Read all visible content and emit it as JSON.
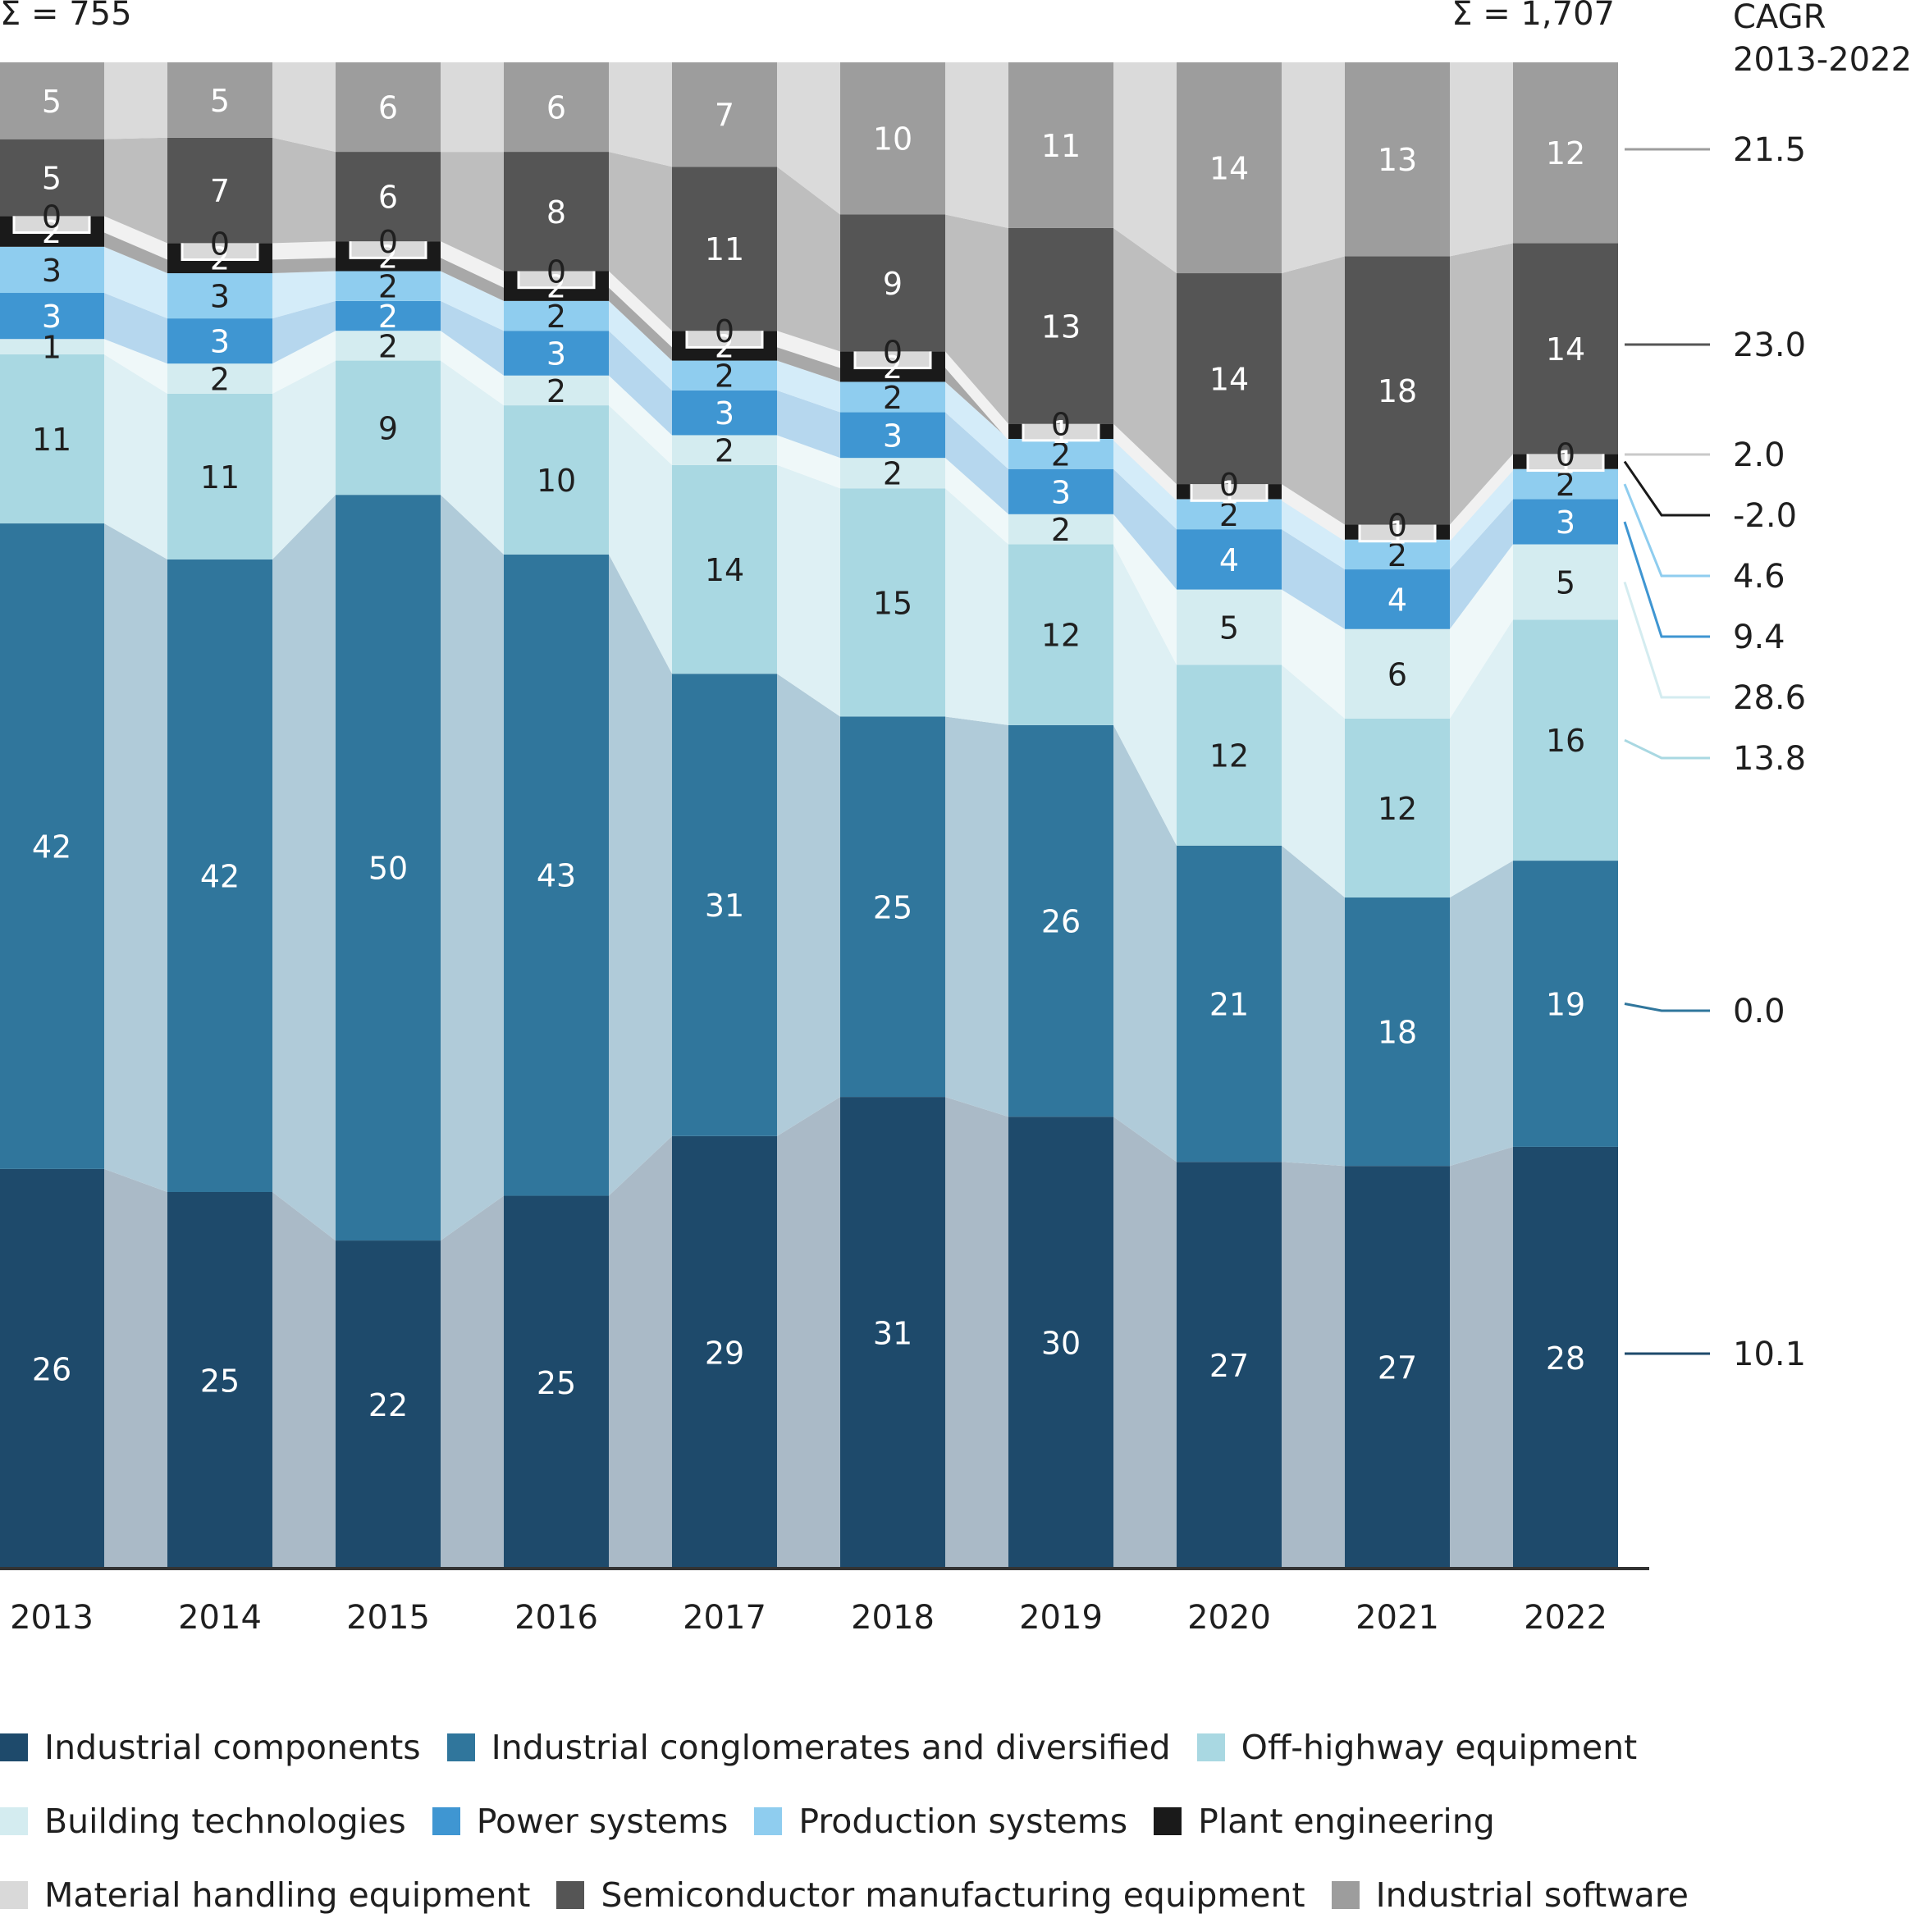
{
  "chart_data": {
    "type": "bar",
    "stacked": true,
    "normalized_percent": true,
    "categories": [
      "2013",
      "2014",
      "2015",
      "2016",
      "2017",
      "2018",
      "2019",
      "2020",
      "2021",
      "2022"
    ],
    "series": [
      {
        "name": "Industrial components",
        "color": "#1e4a6b",
        "values": [
          26,
          25,
          22,
          25,
          29,
          31,
          30,
          27,
          27,
          28
        ]
      },
      {
        "name": "Industrial conglomerates and diversified",
        "color": "#30769c",
        "values": [
          42,
          42,
          50,
          43,
          31,
          25,
          26,
          21,
          18,
          19
        ]
      },
      {
        "name": "Off-highway equipment",
        "color": "#a9d8e2",
        "values": [
          11,
          11,
          9,
          10,
          14,
          15,
          12,
          12,
          12,
          16
        ]
      },
      {
        "name": "Building technologies",
        "color": "#d4ecf0",
        "values": [
          1,
          2,
          2,
          2,
          2,
          2,
          2,
          5,
          6,
          5
        ]
      },
      {
        "name": "Power systems",
        "color": "#3f96d2",
        "values": [
          3,
          3,
          2,
          3,
          3,
          3,
          3,
          4,
          4,
          3
        ]
      },
      {
        "name": "Production systems",
        "color": "#8fcdef",
        "values": [
          3,
          3,
          2,
          2,
          2,
          2,
          2,
          2,
          2,
          2
        ]
      },
      {
        "name": "Plant engineering",
        "color": "#1a1a1a",
        "values": [
          2,
          2,
          2,
          2,
          2,
          2,
          1,
          1,
          1,
          1
        ]
      },
      {
        "name": "Material handling equipment",
        "color": "#d9d9d9",
        "values": [
          0,
          0,
          0,
          0,
          0,
          0,
          0,
          0,
          0,
          0
        ]
      },
      {
        "name": "Semiconductor manufacturing equipment",
        "color": "#555555",
        "values": [
          5,
          7,
          6,
          8,
          11,
          9,
          13,
          14,
          18,
          14
        ]
      },
      {
        "name": "Industrial software",
        "color": "#9d9d9d",
        "values": [
          5,
          5,
          6,
          6,
          7,
          10,
          11,
          14,
          13,
          12
        ]
      }
    ],
    "totals": {
      "first": "Σ = 755",
      "last": "Σ = 1,707"
    },
    "cagr_header": [
      "CAGR",
      "2013-2022"
    ],
    "cagr": {
      "Industrial components": "10.1",
      "Industrial conglomerates and diversified": "0.0",
      "Off-highway equipment": "13.8",
      "Building technologies": "28.6",
      "Power systems": "9.4",
      "Production systems": "4.6",
      "Plant engineering": "-2.0",
      "Material handling equipment": "2.0",
      "Semiconductor manufacturing equipment": "23.0",
      "Industrial software": "21.5"
    },
    "ylim": [
      0,
      100
    ],
    "xlabel": "",
    "ylabel": ""
  },
  "legend": {
    "rows": [
      [
        "Industrial components",
        "Industrial conglomerates and diversified",
        "Off-highway equipment"
      ],
      [
        "Building technologies",
        "Power systems",
        "Production systems",
        "Plant engineering"
      ],
      [
        "Material handling equipment",
        "Semiconductor manufacturing equipment",
        "Industrial software"
      ]
    ]
  }
}
